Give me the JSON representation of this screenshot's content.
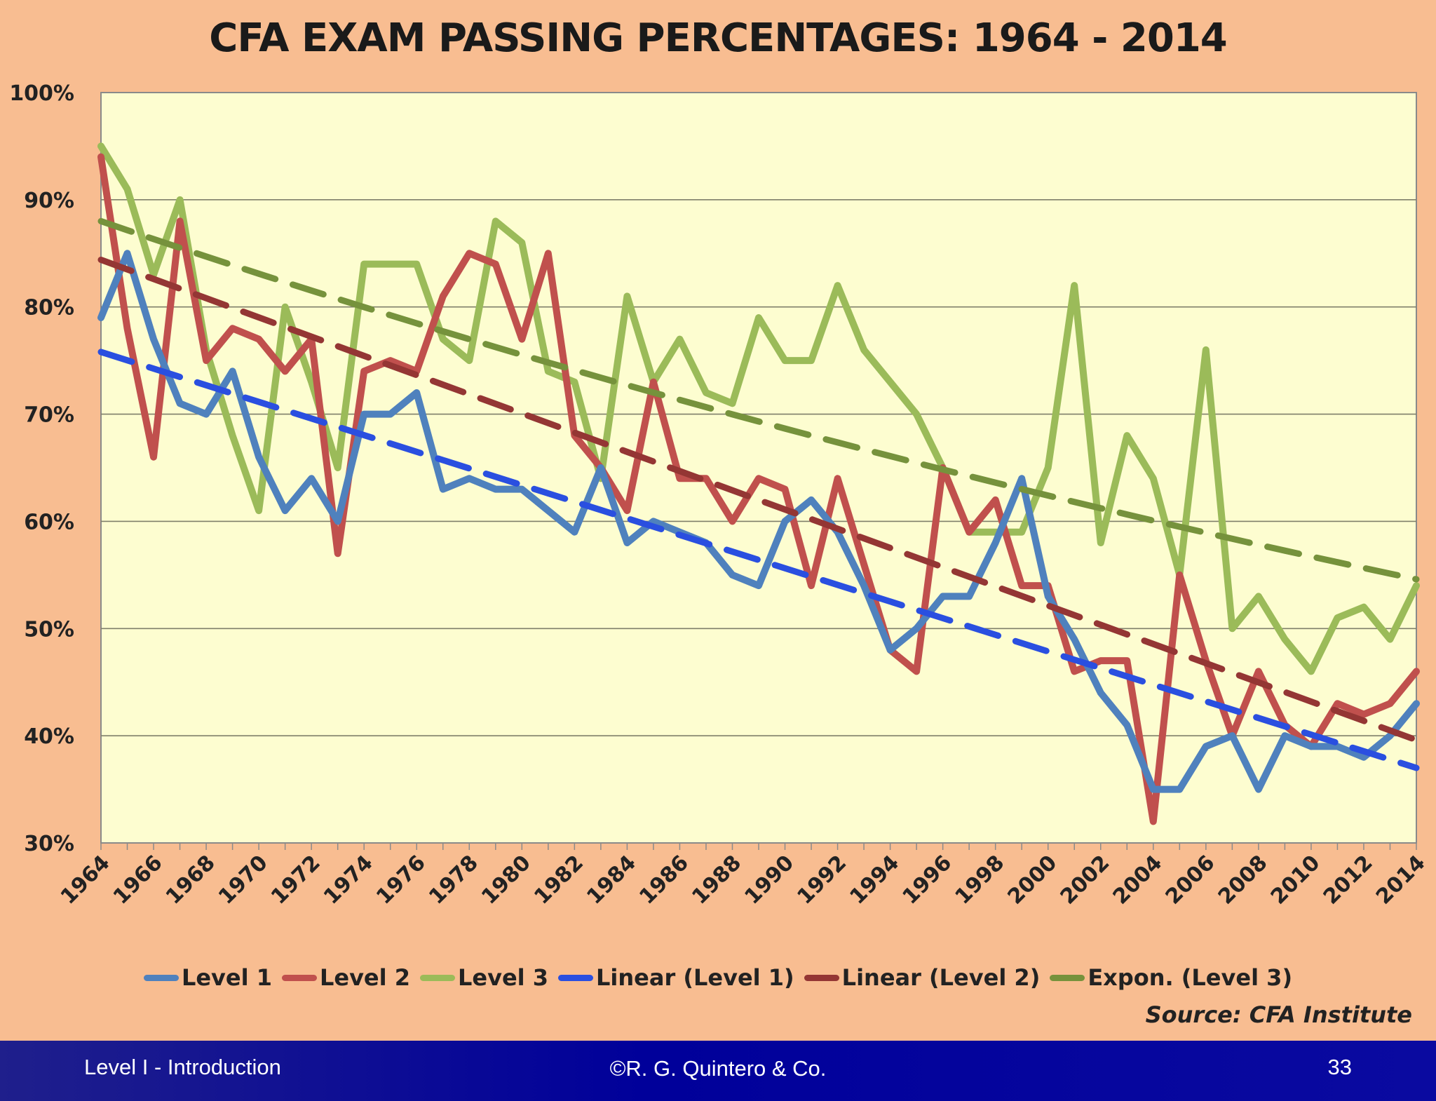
{
  "footer": {
    "left": "Level I - Introduction",
    "center": "©R. G. Quintero & Co.",
    "right": "33"
  },
  "source": "Source:  CFA Institute",
  "colors": {
    "background": "#f8bd91",
    "plot_area": "#fdfdd0",
    "level1": "#4f81bd",
    "level2": "#c0504d",
    "level3": "#9bbb59",
    "linear_level1": "#2a4fe0",
    "linear_level2": "#943634",
    "expon_level3": "#76923c",
    "footer": "#00009a"
  },
  "chart_data": {
    "type": "line",
    "title": "CFA EXAM PASSING PERCENTAGES:  1964 - 2014",
    "xlabel": "",
    "ylabel": "",
    "ylim": [
      30,
      100
    ],
    "yticks": [
      "30%",
      "40%",
      "50%",
      "60%",
      "70%",
      "80%",
      "90%",
      "100%"
    ],
    "ytick_values": [
      30,
      40,
      50,
      60,
      70,
      80,
      90,
      100
    ],
    "grid": true,
    "legend_position": "bottom",
    "x": [
      1964,
      1965,
      1966,
      1967,
      1968,
      1969,
      1970,
      1971,
      1972,
      1973,
      1974,
      1975,
      1976,
      1977,
      1978,
      1979,
      1980,
      1981,
      1982,
      1983,
      1984,
      1985,
      1986,
      1987,
      1988,
      1989,
      1990,
      1991,
      1992,
      1993,
      1994,
      1995,
      1996,
      1997,
      1998,
      1999,
      2000,
      2001,
      2002,
      2003,
      2004,
      2005,
      2006,
      2007,
      2008,
      2009,
      2010,
      2011,
      2012,
      2013,
      2014
    ],
    "xtick_labels": [
      "1964",
      "1966",
      "1968",
      "1970",
      "1972",
      "1974",
      "1976",
      "1978",
      "1980",
      "1982",
      "1984",
      "1986",
      "1988",
      "1990",
      "1992",
      "1994",
      "1996",
      "1998",
      "2000",
      "2002",
      "2004",
      "2006",
      "2008",
      "2010",
      "2012",
      "2014"
    ],
    "series": [
      {
        "name": "Level 1",
        "values": [
          79,
          85,
          77,
          71,
          70,
          74,
          66,
          61,
          64,
          60,
          70,
          70,
          72,
          63,
          64,
          63,
          63,
          61,
          59,
          65,
          58,
          60,
          59,
          58,
          55,
          54,
          60,
          62,
          59,
          54,
          48,
          50,
          53,
          53,
          58,
          64,
          53,
          49,
          44,
          41,
          35,
          35,
          39,
          40,
          35,
          40,
          39,
          39,
          38,
          40,
          43
        ]
      },
      {
        "name": "Level 2",
        "values": [
          94,
          78,
          66,
          88,
          75,
          78,
          77,
          74,
          77,
          57,
          74,
          75,
          74,
          81,
          85,
          84,
          77,
          85,
          68,
          65,
          61,
          73,
          64,
          64,
          60,
          64,
          63,
          54,
          64,
          56,
          48,
          46,
          65,
          59,
          62,
          54,
          54,
          46,
          47,
          47,
          32,
          55,
          47,
          40,
          46,
          41,
          39,
          43,
          42,
          43,
          46
        ]
      },
      {
        "name": "Level 3",
        "values": [
          95,
          91,
          83,
          90,
          76,
          68,
          61,
          80,
          73,
          65,
          84,
          84,
          84,
          77,
          75,
          88,
          86,
          74,
          73,
          64,
          81,
          73,
          77,
          72,
          71,
          79,
          75,
          75,
          82,
          76,
          73,
          70,
          65,
          59,
          59,
          59,
          65,
          82,
          58,
          68,
          64,
          55,
          76,
          50,
          53,
          49,
          46,
          51,
          52,
          49,
          54
        ]
      }
    ],
    "trendlines": [
      {
        "name": "Linear (Level 1)",
        "type": "linear",
        "of": "Level 1",
        "start": [
          1964,
          75.8
        ],
        "end": [
          2014,
          37.0
        ]
      },
      {
        "name": "Linear (Level 2)",
        "type": "linear",
        "of": "Level 2",
        "start": [
          1964,
          84.4
        ],
        "end": [
          2014,
          39.6
        ]
      },
      {
        "name": "Expon. (Level 3)",
        "type": "exponential",
        "of": "Level 3",
        "start": [
          1964,
          88.0
        ],
        "end": [
          2014,
          54.6
        ]
      }
    ],
    "legend": [
      "Level 1",
      "Level 2",
      "Level 3",
      "Linear (Level 1)",
      "Linear (Level 2)",
      "Expon. (Level 3)"
    ]
  }
}
